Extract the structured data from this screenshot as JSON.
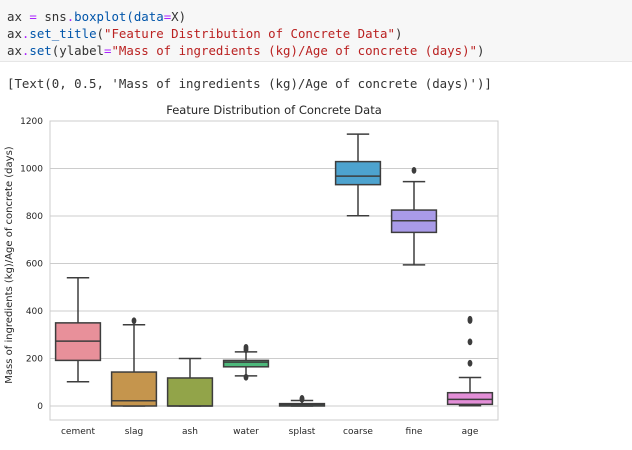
{
  "code_cell": {
    "line1": {
      "a": "ax ",
      "b": "=",
      "c": " sns",
      "d": ".",
      "e": "boxplot(data",
      "f": "=",
      "g": "X)"
    },
    "line2": {
      "a": "ax",
      "b": ".",
      "c": "set_title",
      "d": "(",
      "e": "\"Feature Distribution of Concrete Data\"",
      "f": ")"
    },
    "line3": {
      "a": "ax",
      "b": ".",
      "c": "set",
      "d": "(ylabel",
      "e": "=",
      "f": "\"Mass of ingredients (kg)/Age of concrete (days)\"",
      "g": ")"
    }
  },
  "output": {
    "text": "[Text(0, 0.5, 'Mass of ingredients (kg)/Age of concrete (days)')]"
  },
  "colors": {
    "code_background": "#f7f7f7",
    "box_edge": "#3d3d3d",
    "grid": "#cccccc"
  },
  "chart_data": {
    "type": "box",
    "title": "Feature Distribution of Concrete Data",
    "xlabel": "",
    "ylabel": "Mass of ingredients (kg)/Age of concrete (days)",
    "ylim": [
      -60,
      1200
    ],
    "yticks": [
      0,
      200,
      400,
      600,
      800,
      1000,
      1200
    ],
    "grid": "horizontal",
    "categories": [
      "cement",
      "slag",
      "ash",
      "water",
      "splast",
      "coarse",
      "fine",
      "age"
    ],
    "boxes": [
      {
        "name": "cement",
        "color": "#e8909a",
        "whisker_low": 102,
        "q1": 192,
        "median": 273,
        "q3": 350,
        "whisker_high": 540,
        "outliers": []
      },
      {
        "name": "slag",
        "color": "#c5954d",
        "whisker_low": 0,
        "q1": 0,
        "median": 22,
        "q3": 143,
        "whisker_high": 342,
        "outliers": [
          359
        ]
      },
      {
        "name": "ash",
        "color": "#92a449",
        "whisker_low": 0,
        "q1": 0,
        "median": 0,
        "q3": 118,
        "whisker_high": 200,
        "outliers": []
      },
      {
        "name": "water",
        "color": "#4db87b",
        "whisker_low": 127,
        "q1": 165,
        "median": 185,
        "q3": 192,
        "whisker_high": 228,
        "outliers": [
          121,
          237,
          247
        ]
      },
      {
        "name": "splast",
        "color": "#4eb0a8",
        "whisker_low": 0,
        "q1": 0,
        "median": 6,
        "q3": 10,
        "whisker_high": 23,
        "outliers": [
          28,
          32
        ]
      },
      {
        "name": "coarse",
        "color": "#4da3cf",
        "whisker_low": 801,
        "q1": 932,
        "median": 968,
        "q3": 1029,
        "whisker_high": 1145,
        "outliers": []
      },
      {
        "name": "fine",
        "color": "#a99be8",
        "whisker_low": 594,
        "q1": 731,
        "median": 780,
        "q3": 825,
        "whisker_high": 945,
        "outliers": [
          992
        ]
      },
      {
        "name": "age",
        "color": "#e38ed7",
        "whisker_low": 1,
        "q1": 7,
        "median": 28,
        "q3": 56,
        "whisker_high": 120,
        "outliers": [
          180,
          270,
          360,
          365
        ]
      }
    ]
  }
}
